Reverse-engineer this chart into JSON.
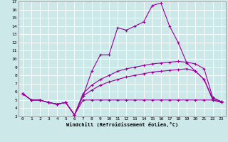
{
  "xlabel": "Windchill (Refroidissement éolien,°C)",
  "bg_color": "#cce8e8",
  "grid_color": "#ffffff",
  "line_color": "#990099",
  "xlim": [
    -0.5,
    23.5
  ],
  "ylim": [
    3,
    17
  ],
  "yticks": [
    3,
    4,
    5,
    6,
    7,
    8,
    9,
    10,
    11,
    12,
    13,
    14,
    15,
    16,
    17
  ],
  "xticks": [
    0,
    1,
    2,
    3,
    4,
    5,
    6,
    7,
    8,
    9,
    10,
    11,
    12,
    13,
    14,
    15,
    16,
    17,
    18,
    19,
    20,
    21,
    22,
    23
  ],
  "series": [
    [
      5.8,
      5.0,
      5.0,
      4.7,
      4.5,
      4.7,
      3.2,
      5.0,
      5.0,
      5.0,
      5.0,
      5.0,
      5.0,
      5.0,
      5.0,
      5.0,
      5.0,
      5.0,
      5.0,
      5.0,
      5.0,
      5.0,
      5.0,
      4.8
    ],
    [
      5.8,
      5.0,
      5.0,
      4.7,
      4.5,
      4.7,
      3.2,
      5.5,
      6.2,
      6.8,
      7.2,
      7.5,
      7.8,
      8.0,
      8.2,
      8.4,
      8.5,
      8.6,
      8.7,
      8.8,
      8.5,
      7.5,
      5.2,
      4.8
    ],
    [
      5.8,
      5.0,
      5.0,
      4.7,
      4.5,
      4.7,
      3.2,
      5.8,
      6.8,
      7.5,
      8.0,
      8.5,
      8.8,
      9.0,
      9.2,
      9.4,
      9.5,
      9.6,
      9.7,
      9.6,
      9.4,
      8.8,
      5.3,
      4.8
    ],
    [
      5.8,
      5.0,
      5.0,
      4.7,
      4.5,
      4.7,
      3.2,
      5.5,
      8.5,
      10.5,
      10.5,
      13.8,
      13.5,
      14.0,
      14.5,
      16.5,
      16.8,
      14.0,
      12.0,
      9.5,
      8.5,
      7.5,
      5.0,
      4.7
    ]
  ]
}
